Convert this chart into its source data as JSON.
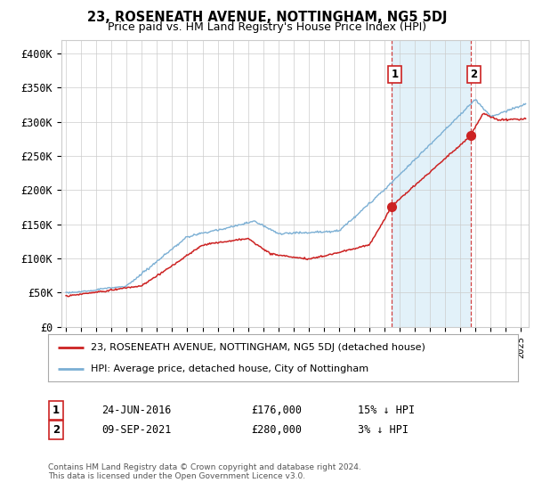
{
  "title": "23, ROSENEATH AVENUE, NOTTINGHAM, NG5 5DJ",
  "subtitle": "Price paid vs. HM Land Registry's House Price Index (HPI)",
  "ylabel_ticks": [
    "£0",
    "£50K",
    "£100K",
    "£150K",
    "£200K",
    "£250K",
    "£300K",
    "£350K",
    "£400K"
  ],
  "ytick_values": [
    0,
    50000,
    100000,
    150000,
    200000,
    250000,
    300000,
    350000,
    400000
  ],
  "ylim": [
    0,
    420000
  ],
  "xlim_start": 1994.7,
  "xlim_end": 2025.5,
  "hpi_color": "#7bafd4",
  "hpi_fill_color": "#d0e8f5",
  "price_color": "#cc2222",
  "dot_color": "#cc2222",
  "marker1_x": 2016.48,
  "marker1_y": 176000,
  "marker2_x": 2021.69,
  "marker2_y": 280000,
  "marker1_label": "1",
  "marker2_label": "2",
  "legend_line1": "23, ROSENEATH AVENUE, NOTTINGHAM, NG5 5DJ (detached house)",
  "legend_line2": "HPI: Average price, detached house, City of Nottingham",
  "table_row1": [
    "1",
    "24-JUN-2016",
    "£176,000",
    "15% ↓ HPI"
  ],
  "table_row2": [
    "2",
    "09-SEP-2021",
    "£280,000",
    "3% ↓ HPI"
  ],
  "footnote": "Contains HM Land Registry data © Crown copyright and database right 2024.\nThis data is licensed under the Open Government Licence v3.0.",
  "vline1_x": 2016.48,
  "vline2_x": 2021.69,
  "background_color": "#ffffff",
  "grid_color": "#cccccc",
  "shade_alpha": 0.25
}
